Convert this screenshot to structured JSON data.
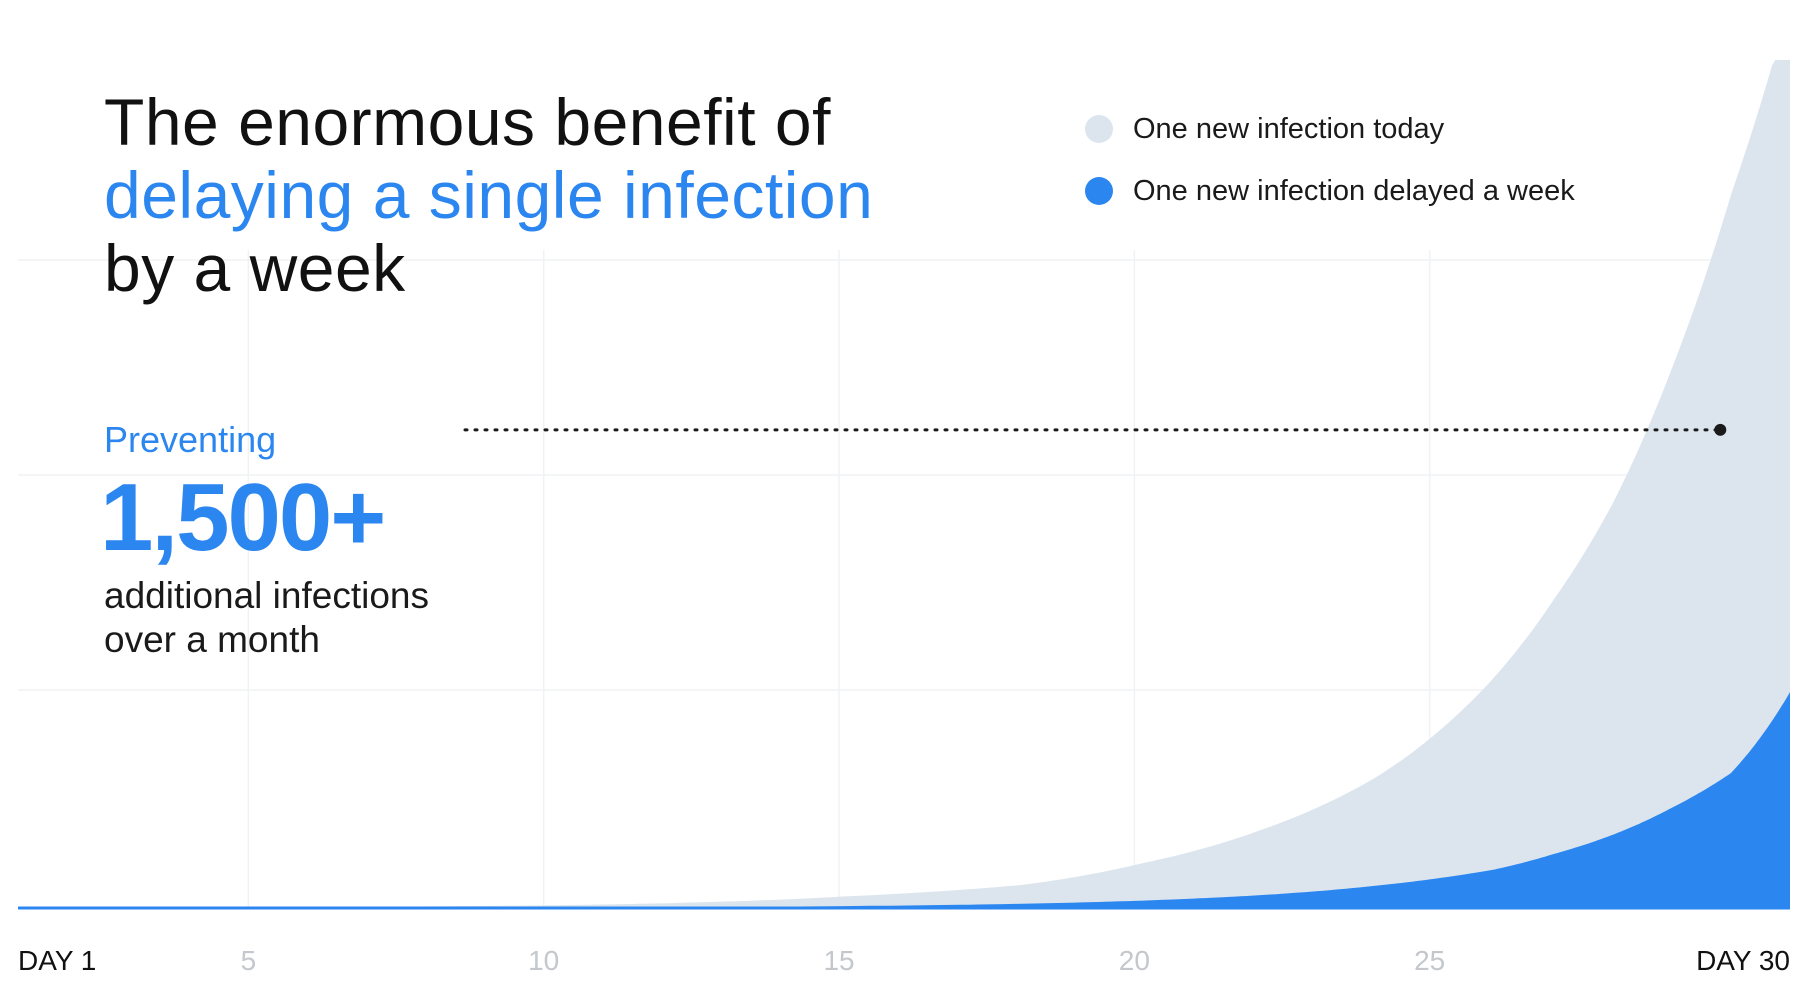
{
  "title": {
    "line1": "The enormous benefit of",
    "line2": "delaying a single infection",
    "line3": "by a week"
  },
  "legend": [
    {
      "label": "One new infection today",
      "color": "#dce5ee"
    },
    {
      "label": "One new infection delayed a week",
      "color": "#2b86f0"
    }
  ],
  "callout": {
    "pre": "Preventing",
    "number": "1,500+",
    "sub_line1": "additional infections",
    "sub_line2": "over a month"
  },
  "chart_data": {
    "type": "area",
    "xlabel": "",
    "ylabel": "",
    "xlim": [
      1,
      31
    ],
    "ylim": [
      0,
      2200
    ],
    "x_tick_labels": [
      {
        "x": 1,
        "label": "DAY 1",
        "emphasis": true
      },
      {
        "x": 5,
        "label": "5",
        "emphasis": false
      },
      {
        "x": 10,
        "label": "10",
        "emphasis": false
      },
      {
        "x": 15,
        "label": "15",
        "emphasis": false
      },
      {
        "x": 20,
        "label": "20",
        "emphasis": false
      },
      {
        "x": 25,
        "label": "25",
        "emphasis": false
      },
      {
        "x": 30,
        "label": "DAY 30",
        "emphasis": true
      }
    ],
    "grid": true,
    "legend_position": "top-right",
    "series": [
      {
        "name": "One new infection today",
        "color": "#dce5ee",
        "x": [
          1,
          5,
          10,
          15,
          18,
          20,
          22,
          24,
          26,
          27,
          28,
          29,
          30,
          31
        ],
        "values": [
          1,
          2,
          7,
          30,
          60,
          115,
          200,
          340,
          600,
          800,
          1050,
          1400,
          1850,
          2350
        ]
      },
      {
        "name": "One new infection delayed a week",
        "color": "#2b86f0",
        "x": [
          1,
          5,
          10,
          15,
          18,
          20,
          22,
          24,
          26,
          27,
          28,
          29,
          30,
          31
        ],
        "values": [
          0,
          0,
          1,
          5,
          11,
          19,
          33,
          58,
          100,
          140,
          190,
          260,
          350,
          560
        ]
      }
    ],
    "annotation": {
      "label": "1,500+",
      "x": 30,
      "y": 1500,
      "style": "dotted-leader"
    }
  }
}
